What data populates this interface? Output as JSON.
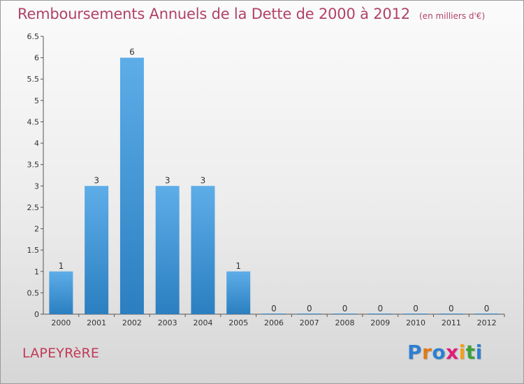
{
  "header": {
    "title": "Remboursements Annuels de la Dette de 2000 à 2012",
    "unit": "(en milliers d'€)"
  },
  "footer": {
    "commune": "LAPEYRèRE",
    "logo": [
      "P",
      "r",
      "o",
      "x",
      "i",
      "t",
      "i"
    ]
  },
  "colors": {
    "bar_light": "#5dade8",
    "bar_dark": "#2b7fc0",
    "title": "#b1426a",
    "commune": "#c23a57",
    "logo": [
      "#2e7fd0",
      "#e07a18",
      "#2e7fd0",
      "#e01e7a",
      "#f0a020",
      "#3aa03a",
      "#2e7fd0"
    ]
  },
  "chart_data": {
    "type": "bar",
    "title": "Remboursements Annuels de la Dette de 2000 à 2012",
    "categories": [
      "2000",
      "2001",
      "2002",
      "2003",
      "2004",
      "2005",
      "2006",
      "2007",
      "2008",
      "2009",
      "2010",
      "2011",
      "2012"
    ],
    "values": [
      1,
      3,
      6,
      3,
      3,
      1,
      0,
      0,
      0,
      0,
      0,
      0,
      0
    ],
    "ylim": [
      0,
      6.5
    ],
    "yticks": [
      0,
      0.5,
      1,
      1.5,
      2,
      2.5,
      3,
      3.5,
      4,
      4.5,
      5,
      5.5,
      6,
      6.5
    ],
    "grid": false,
    "xlabel": "",
    "ylabel": ""
  }
}
